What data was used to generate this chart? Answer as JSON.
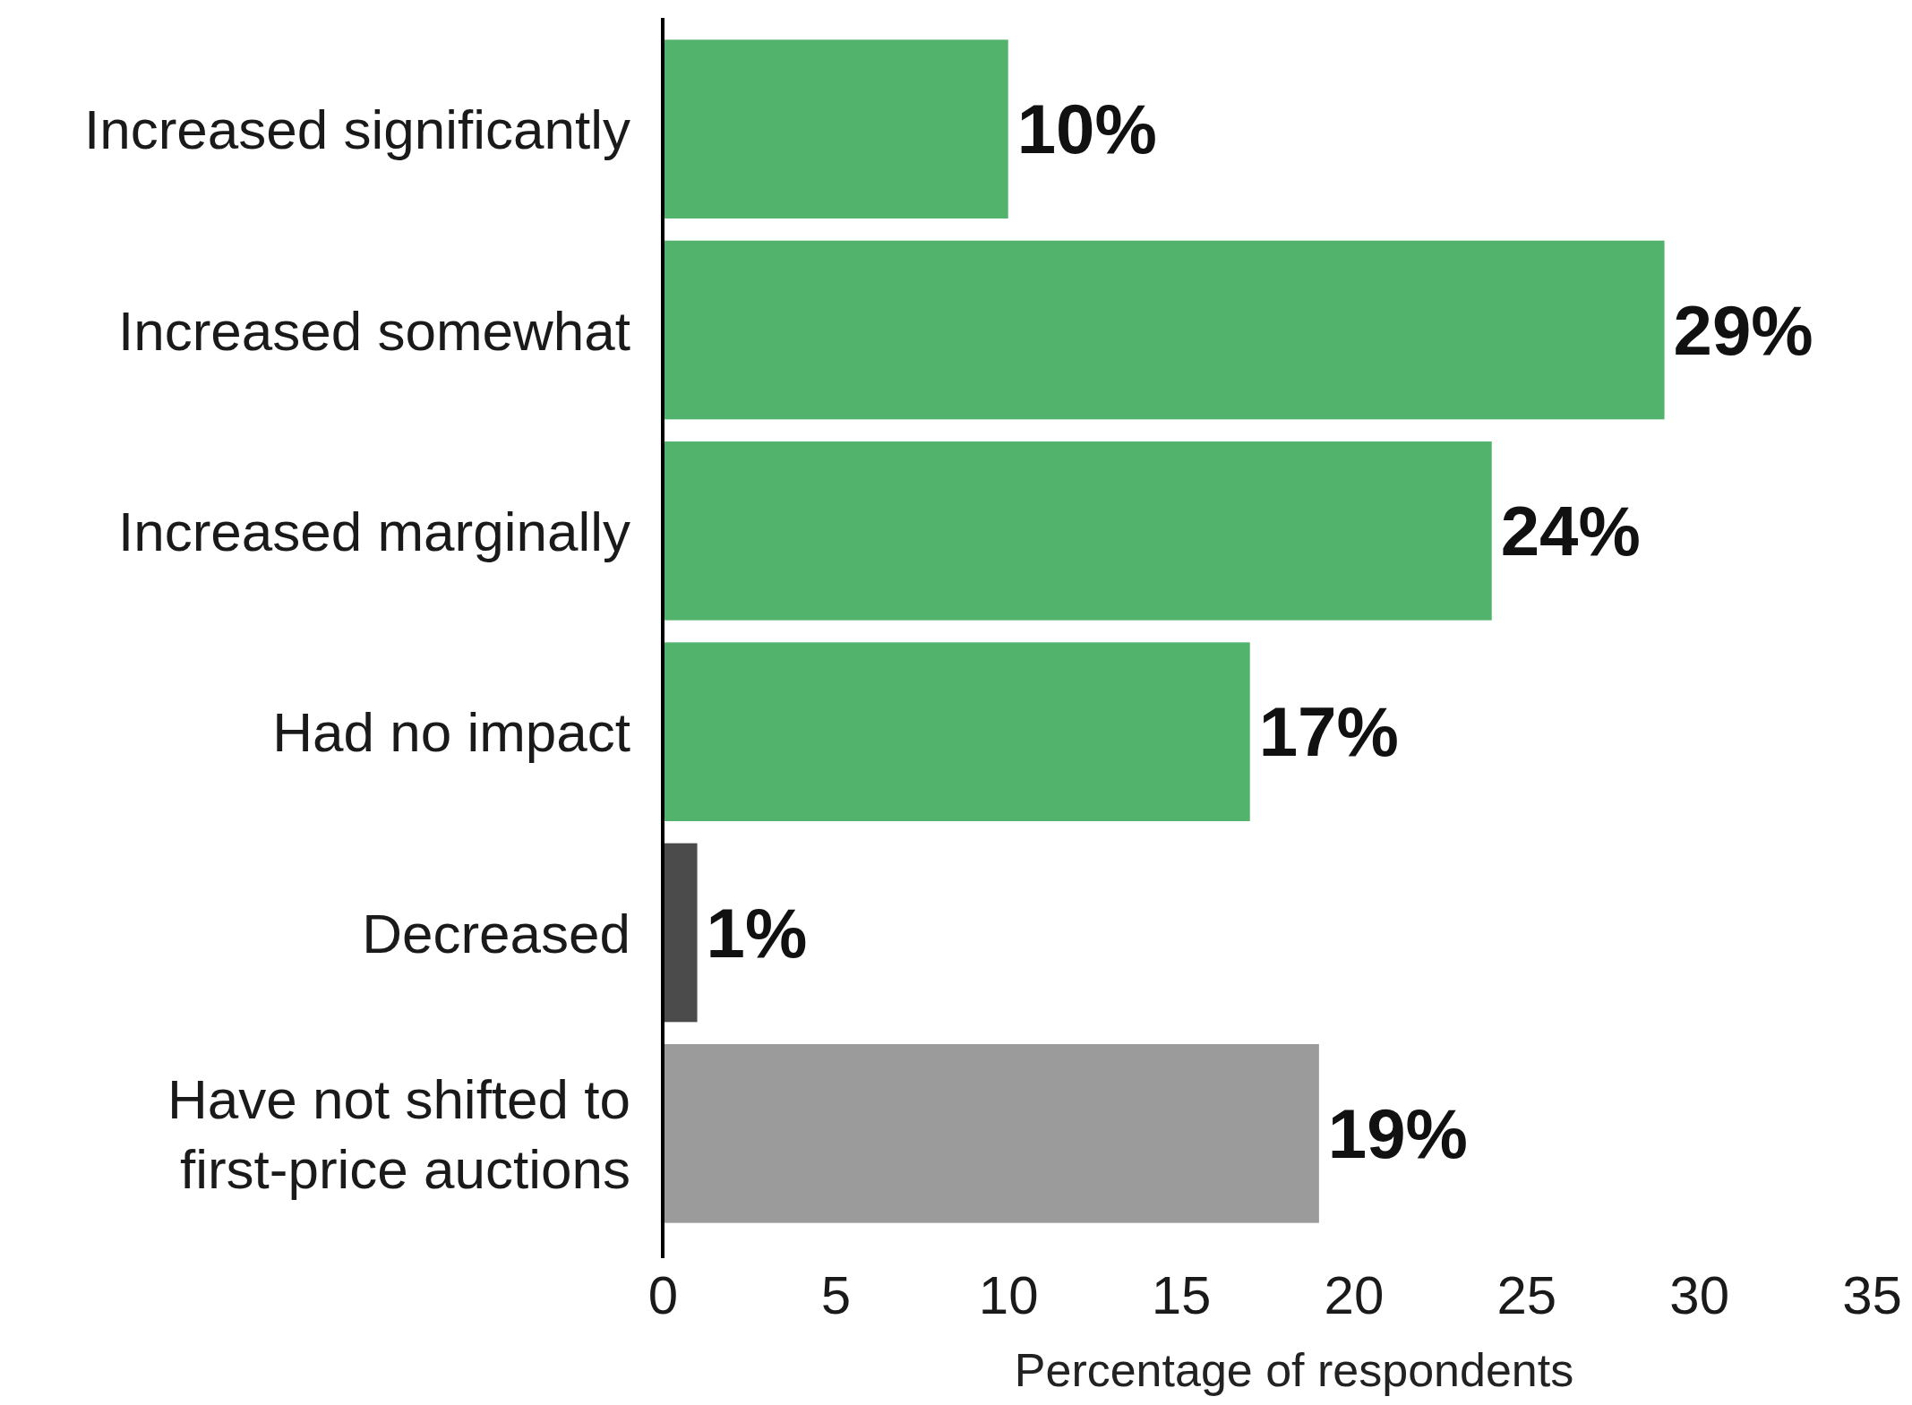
{
  "chart_data": {
    "type": "bar",
    "orientation": "horizontal",
    "categories": [
      "Increased significantly",
      "Increased somewhat",
      "Increased marginally",
      "Had no impact",
      "Decreased",
      "Have not shifted to first-price auctions"
    ],
    "values": [
      10,
      29,
      24,
      17,
      1,
      19
    ],
    "colors": [
      "#52b36c",
      "#52b36c",
      "#52b36c",
      "#52b36c",
      "#4b4b4b",
      "#9b9b9b"
    ],
    "value_labels": [
      "10%",
      "29%",
      "24%",
      "17%",
      "1%",
      "19%"
    ],
    "xlabel": "Percentage of respondents",
    "xlim": [
      0,
      35
    ],
    "xticks": [
      0,
      5,
      10,
      15,
      20,
      25,
      30,
      35
    ]
  }
}
